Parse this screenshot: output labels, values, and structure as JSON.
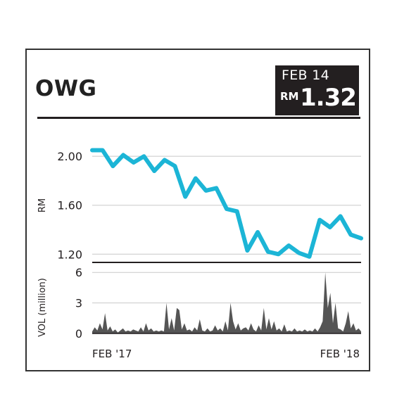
{
  "header": {
    "ticker": "OWG",
    "date": "FEB 14",
    "currency": "RM",
    "price": "1.32"
  },
  "colors": {
    "price_line": "#1cb5d6",
    "volume_fill": "#555555",
    "grid": "#c8c8c8",
    "header_box": "#231f20"
  },
  "chart_data": [
    {
      "type": "line",
      "ylabel": "RM",
      "ylim": [
        1.15,
        2.07
      ],
      "yticks": [
        "2.00",
        "1.60",
        "1.20"
      ],
      "ytick_values": [
        2.0,
        1.6,
        1.2
      ],
      "x": [
        0,
        2,
        4,
        6,
        8,
        10,
        12,
        14,
        16,
        18,
        20,
        22,
        24,
        26,
        28,
        30,
        32,
        34,
        36,
        38,
        40,
        42,
        44,
        46,
        48,
        50,
        52
      ],
      "values": [
        2.05,
        2.05,
        1.92,
        2.01,
        1.95,
        2.0,
        1.88,
        1.97,
        1.92,
        1.67,
        1.82,
        1.72,
        1.74,
        1.57,
        1.55,
        1.23,
        1.38,
        1.22,
        1.2,
        1.27,
        1.21,
        1.18,
        1.48,
        1.42,
        1.51,
        1.36,
        1.33
      ],
      "xticks": [
        "FEB '17",
        "FEB '18"
      ],
      "grid": true
    },
    {
      "type": "area",
      "ylabel": "VOL (million)",
      "ylim": [
        0,
        6.5
      ],
      "yticks": [
        "6",
        "3",
        "0"
      ],
      "ytick_values": [
        6,
        3,
        0
      ],
      "values": [
        0.2,
        0.6,
        0.3,
        1.0,
        0.4,
        2.0,
        0.3,
        0.7,
        0.2,
        0.4,
        0.1,
        0.3,
        0.5,
        0.2,
        0.3,
        0.2,
        0.4,
        0.3,
        0.2,
        0.6,
        0.2,
        1.0,
        0.3,
        0.5,
        0.2,
        0.3,
        0.2,
        0.3,
        0.2,
        3.0,
        0.4,
        1.5,
        0.3,
        2.5,
        2.3,
        0.4,
        1.0,
        0.3,
        0.4,
        0.2,
        0.6,
        0.3,
        1.4,
        0.3,
        0.2,
        0.5,
        0.2,
        0.3,
        0.8,
        0.3,
        0.5,
        0.2,
        1.2,
        0.3,
        3.0,
        1.2,
        0.4,
        1.0,
        0.3,
        0.5,
        0.6,
        0.3,
        1.0,
        0.4,
        0.2,
        0.8,
        0.3,
        2.5,
        0.4,
        1.5,
        0.4,
        1.2,
        0.3,
        0.5,
        0.2,
        0.9,
        0.2,
        0.3,
        0.2,
        0.5,
        0.2,
        0.3,
        0.2,
        0.4,
        0.2,
        0.3,
        0.2,
        0.5,
        0.2,
        0.6,
        1.2,
        6.0,
        2.5,
        4.0,
        1.0,
        3.0,
        0.5,
        0.4,
        0.2,
        1.0,
        2.2,
        0.5,
        1.0,
        0.3,
        0.5,
        0.2
      ],
      "xticks": [
        "FEB '17",
        "FEB '18"
      ],
      "grid": true
    }
  ]
}
